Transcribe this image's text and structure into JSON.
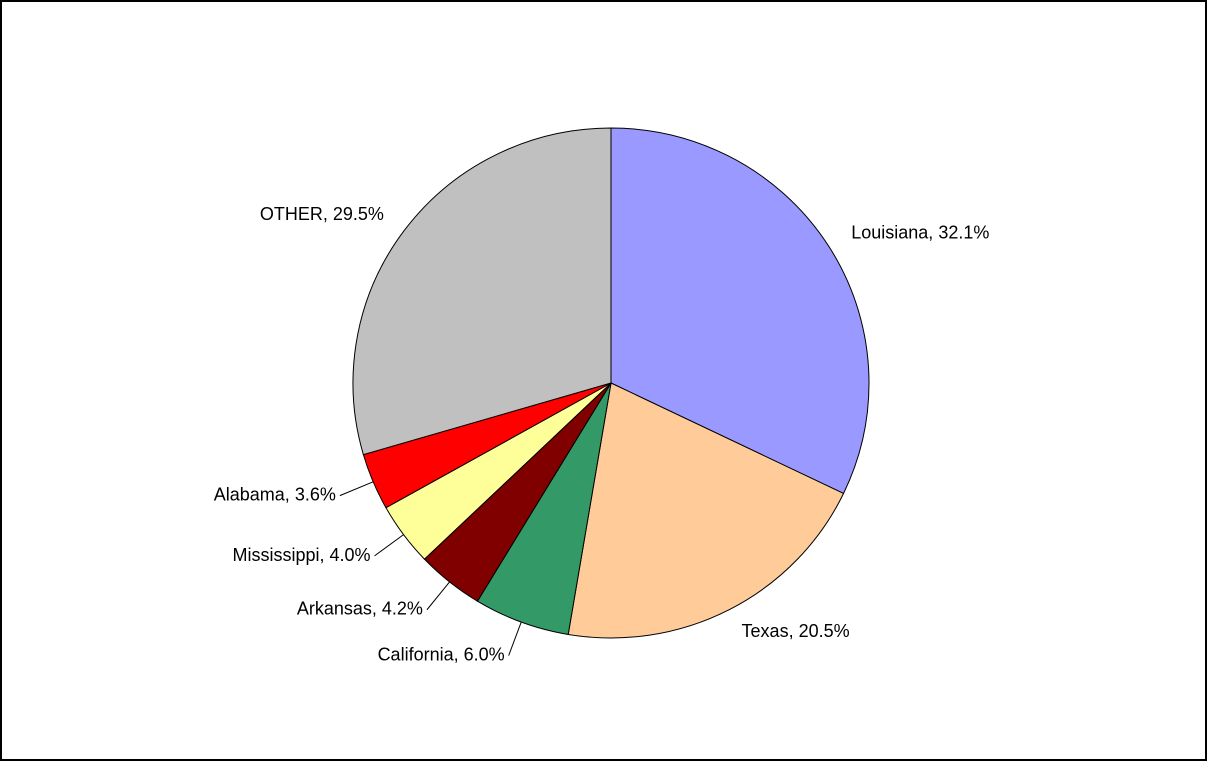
{
  "chart_data": {
    "type": "pie",
    "categories": [
      "Louisiana",
      "Texas",
      "California",
      "Arkansas",
      "Mississippi",
      "Alabama",
      "OTHER"
    ],
    "values": [
      32.1,
      20.5,
      6.0,
      4.2,
      4.0,
      3.6,
      29.5
    ],
    "value_labels": [
      "32.1%",
      "20.5%",
      "6.0%",
      "4.2%",
      "4.0%",
      "3.6%",
      "29.5%"
    ],
    "label_separator": ", ",
    "colors": [
      "#9999FF",
      "#FFCC99",
      "#339966",
      "#800000",
      "#FFFF99",
      "#FF0000",
      "#C0C0C0"
    ]
  }
}
